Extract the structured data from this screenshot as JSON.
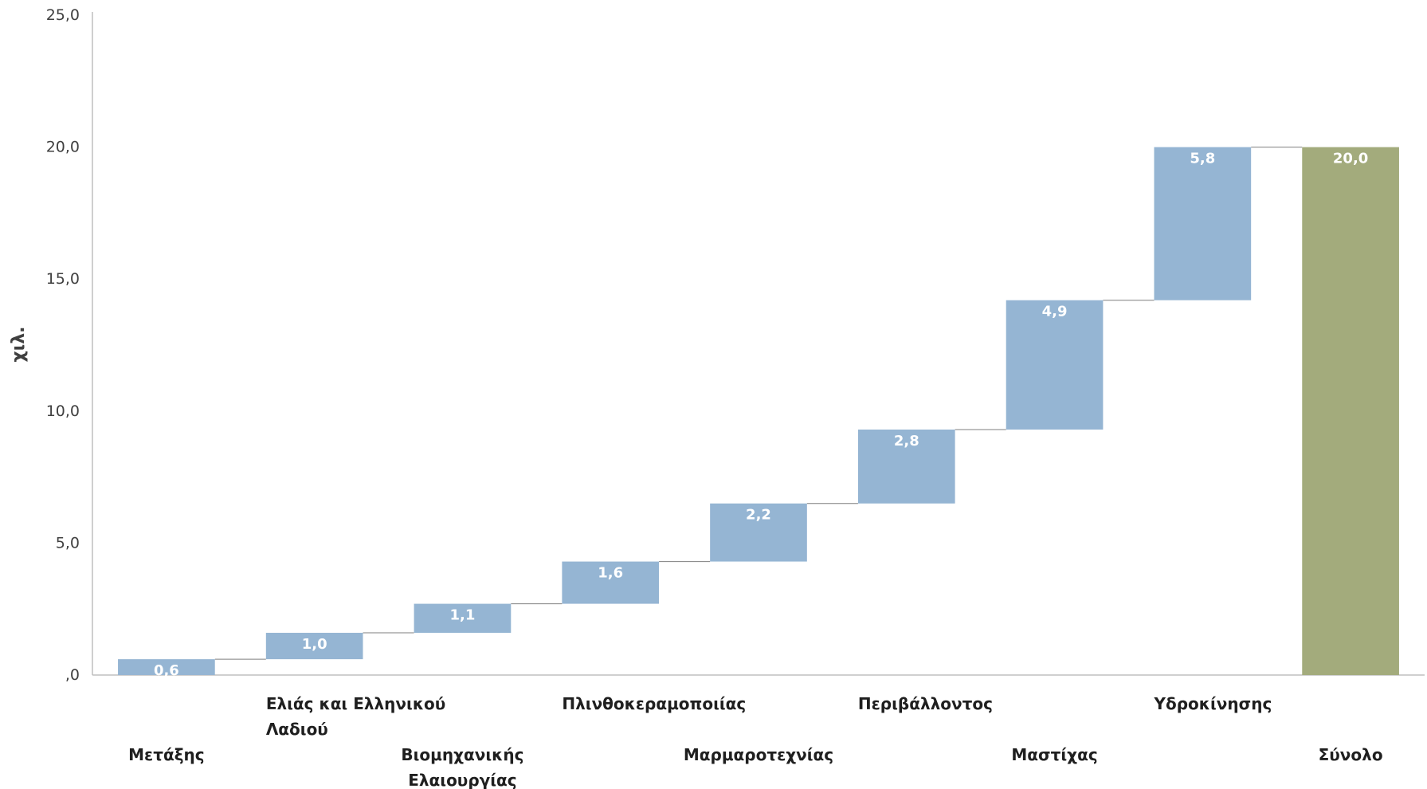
{
  "chart_data": {
    "type": "bar",
    "subtype": "waterfall",
    "ylabel": "χιλ.",
    "ylim": [
      0,
      25
    ],
    "yticks": [
      "25,0",
      "20,0",
      "15,0",
      "10,0",
      "5,0",
      ",0"
    ],
    "ytick_values": [
      25,
      20,
      15,
      10,
      5,
      0
    ],
    "categories": [
      [
        "Μετάξης"
      ],
      [
        "Ελιάς και Ελληνικού",
        "Λαδιού"
      ],
      [
        "Βιομηχανικής",
        "Ελαιουργίας"
      ],
      [
        "Πλινθοκεραμοποιίας"
      ],
      [
        "Μαρμαροτεχνίας"
      ],
      [
        "Περιβάλλοντος"
      ],
      [
        "Μαστίχας"
      ],
      [
        "Υδροκίνησης"
      ],
      [
        "Σύνολο"
      ]
    ],
    "values": [
      0.6,
      1.0,
      1.1,
      1.6,
      2.2,
      2.8,
      4.9,
      5.8,
      20.0
    ],
    "value_labels": [
      "0,6",
      "1,0",
      "1,1",
      "1,6",
      "2,2",
      "2,8",
      "4,9",
      "5,8",
      "20,0"
    ],
    "is_total": [
      false,
      false,
      false,
      false,
      false,
      false,
      false,
      false,
      true
    ],
    "grid": false,
    "legend": "none",
    "colors": {
      "increase": "#95b5d3",
      "total": "#a3ab7c",
      "connector": "#7f7f7f",
      "axis": "#bfbfbf"
    }
  }
}
